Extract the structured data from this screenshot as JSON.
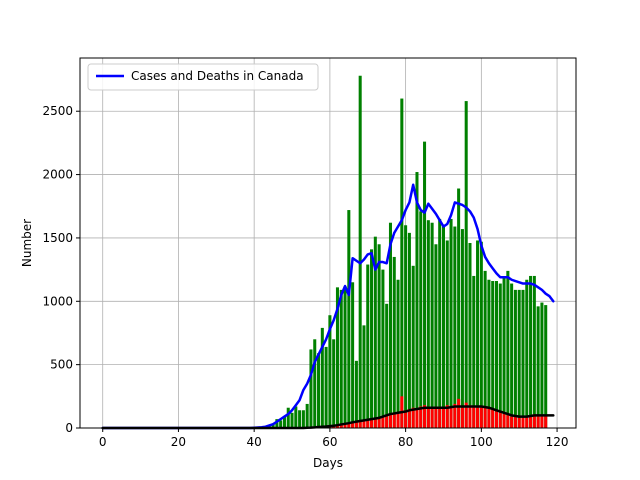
{
  "chart_data": {
    "type": "bar",
    "title": "",
    "xlabel": "Days",
    "ylabel": "Number",
    "xlim": [
      -6,
      125
    ],
    "ylim": [
      0,
      2920
    ],
    "xticks": [
      0,
      20,
      40,
      60,
      80,
      100,
      120
    ],
    "yticks": [
      0,
      500,
      1000,
      1500,
      2000,
      2500
    ],
    "grid": true,
    "legend": {
      "placement": "top-left",
      "entries": [
        "Cases and Deaths in Canada"
      ]
    },
    "colors": {
      "cases_bars": "#008000",
      "deaths_bars": "#ff0000",
      "cases_line": "#0000ff",
      "deaths_line": "#000000",
      "grid": "#b0b0b0"
    },
    "x": [
      0,
      1,
      2,
      3,
      4,
      5,
      6,
      7,
      8,
      9,
      10,
      11,
      12,
      13,
      14,
      15,
      16,
      17,
      18,
      19,
      20,
      21,
      22,
      23,
      24,
      25,
      26,
      27,
      28,
      29,
      30,
      31,
      32,
      33,
      34,
      35,
      36,
      37,
      38,
      39,
      40,
      41,
      42,
      43,
      44,
      45,
      46,
      47,
      48,
      49,
      50,
      51,
      52,
      53,
      54,
      55,
      56,
      57,
      58,
      59,
      60,
      61,
      62,
      63,
      64,
      65,
      66,
      67,
      68,
      69,
      70,
      71,
      72,
      73,
      74,
      75,
      76,
      77,
      78,
      79,
      80,
      81,
      82,
      83,
      84,
      85,
      86,
      87,
      88,
      89,
      90,
      91,
      92,
      93,
      94,
      95,
      96,
      97,
      98,
      99,
      100,
      101,
      102,
      103,
      104,
      105,
      106,
      107,
      108,
      109,
      110,
      111,
      112,
      113,
      114,
      115,
      116,
      117,
      118,
      119
    ],
    "series": [
      {
        "name": "",
        "kind": "bar",
        "color": "#008000",
        "values": [
          0,
          0,
          0,
          0,
          0,
          0,
          0,
          0,
          0,
          0,
          0,
          0,
          0,
          0,
          0,
          0,
          0,
          0,
          0,
          0,
          0,
          0,
          0,
          0,
          0,
          0,
          0,
          0,
          0,
          0,
          0,
          0,
          0,
          0,
          0,
          0,
          0,
          0,
          0,
          0,
          2,
          3,
          5,
          10,
          20,
          30,
          70,
          60,
          90,
          160,
          120,
          170,
          140,
          140,
          190,
          620,
          700,
          590,
          790,
          640,
          890,
          700,
          1110,
          1090,
          1120,
          1720,
          1150,
          530,
          2780,
          810,
          1290,
          1410,
          1510,
          1450,
          1250,
          980,
          1620,
          1350,
          1170,
          2600,
          1600,
          1540,
          1280,
          2020,
          1710,
          2260,
          1640,
          1620,
          1450,
          1650,
          1590,
          1480,
          1650,
          1590,
          1890,
          1570,
          2580,
          1460,
          1200,
          1480,
          1470,
          1240,
          1170,
          1160,
          1160,
          1140,
          1180,
          1240,
          1140,
          1090,
          1090,
          1090,
          1170,
          1200,
          1200,
          960,
          990,
          970,
          0,
          0
        ]
      },
      {
        "name": "",
        "kind": "bar",
        "color": "#ff0000",
        "values": [
          0,
          0,
          0,
          0,
          0,
          0,
          0,
          0,
          0,
          0,
          0,
          0,
          0,
          0,
          0,
          0,
          0,
          0,
          0,
          0,
          0,
          0,
          0,
          0,
          0,
          0,
          0,
          0,
          0,
          0,
          0,
          0,
          0,
          0,
          0,
          0,
          0,
          0,
          0,
          0,
          0,
          0,
          0,
          0,
          0,
          0,
          0,
          0,
          0,
          0,
          0,
          0,
          0,
          0,
          0,
          2,
          3,
          5,
          5,
          8,
          10,
          12,
          20,
          25,
          30,
          35,
          40,
          45,
          50,
          55,
          60,
          70,
          75,
          85,
          90,
          100,
          110,
          115,
          120,
          250,
          140,
          150,
          160,
          150,
          170,
          180,
          170,
          160,
          170,
          150,
          160,
          180,
          170,
          190,
          230,
          160,
          200,
          180,
          170,
          160,
          170,
          160,
          150,
          150,
          130,
          120,
          110,
          100,
          90,
          90,
          80,
          80,
          90,
          100,
          110,
          100,
          100,
          100,
          0,
          0
        ]
      },
      {
        "name": "Cases and Deaths in Canada",
        "kind": "line",
        "color": "#0000ff",
        "values": [
          0,
          0,
          0,
          0,
          0,
          0,
          0,
          0,
          0,
          0,
          0,
          0,
          0,
          0,
          0,
          0,
          0,
          0,
          0,
          0,
          0,
          0,
          0,
          0,
          0,
          0,
          0,
          0,
          0,
          0,
          0,
          0,
          0,
          0,
          0,
          0,
          0,
          0,
          0,
          0,
          2,
          4,
          6,
          10,
          20,
          30,
          50,
          70,
          90,
          110,
          140,
          180,
          220,
          300,
          350,
          420,
          520,
          580,
          640,
          700,
          780,
          850,
          940,
          1050,
          1120,
          1050,
          1340,
          1320,
          1300,
          1330,
          1370,
          1380,
          1250,
          1310,
          1310,
          1300,
          1450,
          1540,
          1590,
          1640,
          1720,
          1780,
          1920,
          1780,
          1720,
          1700,
          1770,
          1730,
          1690,
          1640,
          1590,
          1610,
          1680,
          1780,
          1770,
          1760,
          1740,
          1710,
          1660,
          1570,
          1440,
          1350,
          1300,
          1260,
          1220,
          1190,
          1190,
          1190,
          1170,
          1160,
          1150,
          1140,
          1140,
          1140,
          1130,
          1110,
          1090,
          1060,
          1040,
          1000
        ]
      },
      {
        "name": "",
        "kind": "line",
        "color": "#000000",
        "values": [
          0,
          0,
          0,
          0,
          0,
          0,
          0,
          0,
          0,
          0,
          0,
          0,
          0,
          0,
          0,
          0,
          0,
          0,
          0,
          0,
          0,
          0,
          0,
          0,
          0,
          0,
          0,
          0,
          0,
          0,
          0,
          0,
          0,
          0,
          0,
          0,
          0,
          0,
          0,
          0,
          0,
          0,
          0,
          0,
          0,
          0,
          0,
          0,
          0,
          0,
          0,
          0,
          0,
          0,
          2,
          3,
          5,
          8,
          10,
          12,
          15,
          18,
          22,
          28,
          33,
          38,
          45,
          50,
          55,
          60,
          65,
          70,
          75,
          80,
          90,
          100,
          110,
          115,
          120,
          125,
          130,
          140,
          145,
          150,
          155,
          160,
          160,
          160,
          160,
          160,
          160,
          160,
          165,
          170,
          170,
          170,
          170,
          170,
          170,
          170,
          170,
          165,
          160,
          150,
          140,
          130,
          120,
          110,
          100,
          95,
          90,
          90,
          90,
          95,
          100,
          100,
          100,
          100,
          100,
          100
        ]
      }
    ]
  }
}
